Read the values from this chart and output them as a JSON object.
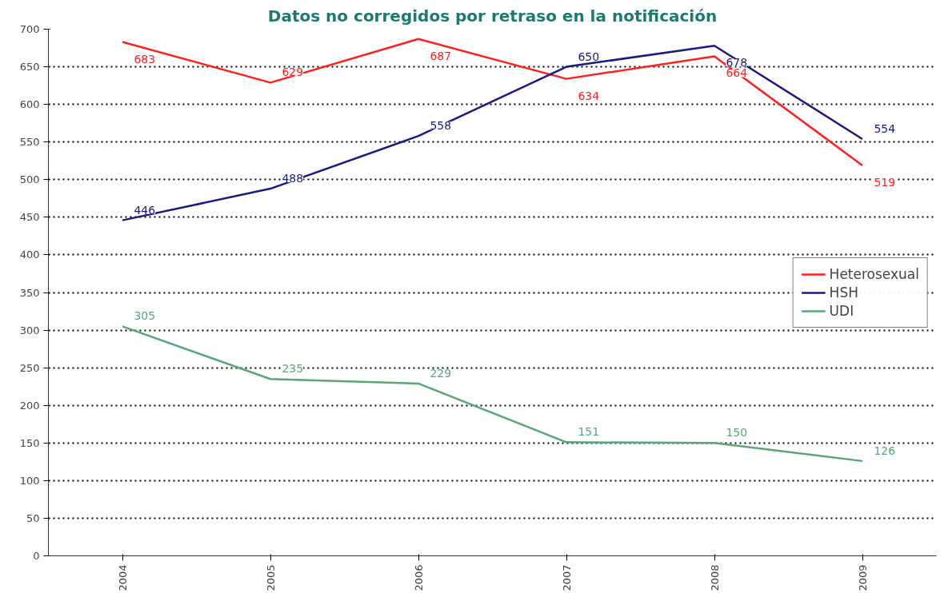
{
  "chart_data": {
    "type": "line",
    "title": "Datos no corregidos por retraso en la notificación",
    "categories": [
      "2004",
      "2005",
      "2006",
      "2007",
      "2008",
      "2009"
    ],
    "series": [
      {
        "name": "Heterosexual",
        "color": "#ff2020",
        "values": [
          683,
          629,
          687,
          634,
          664,
          519
        ]
      },
      {
        "name": "HSH",
        "color": "#1a1a80",
        "values": [
          446,
          488,
          558,
          650,
          678,
          554
        ]
      },
      {
        "name": "UDI",
        "color": "#5aa57a",
        "values": [
          305,
          235,
          229,
          151,
          150,
          126
        ]
      }
    ],
    "ylim": [
      0,
      700
    ],
    "yticks": [
      0,
      50,
      100,
      150,
      200,
      250,
      300,
      350,
      400,
      450,
      500,
      550,
      600,
      650,
      700
    ],
    "grid": "y",
    "legend": "right",
    "data_labels": true,
    "marker": "none",
    "line_style": "solid"
  }
}
